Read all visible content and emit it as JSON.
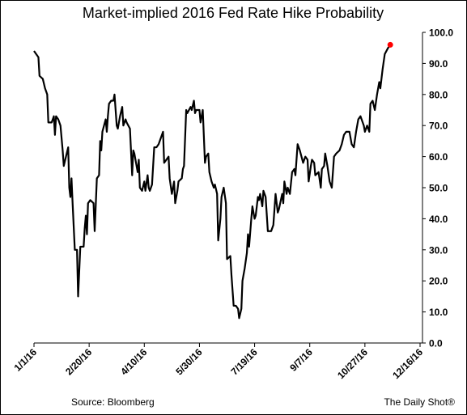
{
  "chart_data": {
    "type": "line",
    "title": "Market-implied 2016 Fed Rate Hike Probability",
    "source": "Source: Bloomberg",
    "credit": "The Daily Shot®",
    "xlim": [
      "2016-01-01",
      "2016-12-16"
    ],
    "xticks": [
      {
        "value": "2016-01-01",
        "label": "1/1/16"
      },
      {
        "value": "2016-02-20",
        "label": "2/20/16"
      },
      {
        "value": "2016-04-10",
        "label": "4/10/16"
      },
      {
        "value": "2016-05-30",
        "label": "5/30/16"
      },
      {
        "value": "2016-07-19",
        "label": "7/19/16"
      },
      {
        "value": "2016-09-07",
        "label": "9/7/16"
      },
      {
        "value": "2016-10-27",
        "label": "10/27/16"
      },
      {
        "value": "2016-12-16",
        "label": "12/16/16"
      }
    ],
    "ylim": [
      0,
      100
    ],
    "yticks": [
      {
        "value": 0,
        "label": "0.0"
      },
      {
        "value": 10,
        "label": "10.0"
      },
      {
        "value": 20,
        "label": "20.0"
      },
      {
        "value": 30,
        "label": "30.0"
      },
      {
        "value": 40,
        "label": "40.0"
      },
      {
        "value": 50,
        "label": "50.0"
      },
      {
        "value": 60,
        "label": "60.0"
      },
      {
        "value": 70,
        "label": "70.0"
      },
      {
        "value": 80,
        "label": "80.0"
      },
      {
        "value": 90,
        "label": "90.0"
      },
      {
        "value": 100,
        "label": "100.0"
      }
    ],
    "y_axis_side": "right",
    "grid": false,
    "highlight_last": true,
    "highlight_color": "#ff0000",
    "series": [
      {
        "color": "#000000",
        "x": [
          "2016-01-01",
          "2016-01-05",
          "2016-01-06",
          "2016-01-09",
          "2016-01-11",
          "2016-01-13",
          "2016-01-14",
          "2016-01-17",
          "2016-01-19",
          "2016-01-20",
          "2016-01-21",
          "2016-01-23",
          "2016-01-25",
          "2016-01-27",
          "2016-01-28",
          "2016-01-30",
          "2016-02-01",
          "2016-02-02",
          "2016-02-03",
          "2016-02-04",
          "2016-02-05",
          "2016-02-07",
          "2016-02-09",
          "2016-02-10",
          "2016-02-12",
          "2016-02-15",
          "2016-02-16",
          "2016-02-17",
          "2016-02-18",
          "2016-02-19",
          "2016-02-21",
          "2016-02-24",
          "2016-02-25",
          "2016-02-27",
          "2016-02-29",
          "2016-03-01",
          "2016-03-02",
          "2016-03-03",
          "2016-03-06",
          "2016-03-07",
          "2016-03-08",
          "2016-03-09",
          "2016-03-11",
          "2016-03-13",
          "2016-03-14",
          "2016-03-16",
          "2016-03-17",
          "2016-03-19",
          "2016-03-21",
          "2016-03-22",
          "2016-03-24",
          "2016-03-25",
          "2016-03-28",
          "2016-03-30",
          "2016-03-31",
          "2016-04-01",
          "2016-04-04",
          "2016-04-05",
          "2016-04-06",
          "2016-04-08",
          "2016-04-10",
          "2016-04-11",
          "2016-04-13",
          "2016-04-14",
          "2016-04-15",
          "2016-04-17",
          "2016-04-19",
          "2016-04-21",
          "2016-04-23",
          "2016-04-24",
          "2016-04-27",
          "2016-04-28",
          "2016-04-30",
          "2016-05-02",
          "2016-05-03",
          "2016-05-05",
          "2016-05-07",
          "2016-05-08",
          "2016-05-10",
          "2016-05-11",
          "2016-05-14",
          "2016-05-15",
          "2016-05-16",
          "2016-05-18",
          "2016-05-19",
          "2016-05-22",
          "2016-05-23",
          "2016-05-25",
          "2016-05-26",
          "2016-05-27",
          "2016-05-30",
          "2016-05-31",
          "2016-06-02",
          "2016-06-04",
          "2016-06-05",
          "2016-06-07",
          "2016-06-08",
          "2016-06-10",
          "2016-06-12",
          "2016-06-13",
          "2016-06-15",
          "2016-06-16",
          "2016-06-18",
          "2016-06-19",
          "2016-06-21",
          "2016-06-23",
          "2016-06-24",
          "2016-06-27",
          "2016-06-28",
          "2016-06-29",
          "2016-06-30",
          "2016-07-02",
          "2016-07-04",
          "2016-07-05",
          "2016-07-07",
          "2016-07-08",
          "2016-07-10",
          "2016-07-12",
          "2016-07-13",
          "2016-07-14",
          "2016-07-16",
          "2016-07-17",
          "2016-07-19",
          "2016-07-20",
          "2016-07-22",
          "2016-07-23",
          "2016-07-24",
          "2016-07-26",
          "2016-07-27",
          "2016-07-29",
          "2016-07-31",
          "2016-08-03",
          "2016-08-05",
          "2016-08-07",
          "2016-08-09",
          "2016-08-10",
          "2016-08-13",
          "2016-08-14",
          "2016-08-15",
          "2016-08-17",
          "2016-08-18",
          "2016-08-20",
          "2016-08-22",
          "2016-08-24",
          "2016-08-25",
          "2016-08-27",
          "2016-08-29",
          "2016-09-01",
          "2016-09-03",
          "2016-09-05",
          "2016-09-06",
          "2016-09-08",
          "2016-09-09",
          "2016-09-11",
          "2016-09-12",
          "2016-09-15",
          "2016-09-17",
          "2016-09-18",
          "2016-09-20",
          "2016-09-21",
          "2016-09-23",
          "2016-09-25",
          "2016-09-27",
          "2016-09-29",
          "2016-10-01",
          "2016-10-04",
          "2016-10-06",
          "2016-10-08",
          "2016-10-10",
          "2016-10-13",
          "2016-10-15",
          "2016-10-17",
          "2016-10-19",
          "2016-10-21",
          "2016-10-23",
          "2016-10-26",
          "2016-10-27",
          "2016-10-29",
          "2016-10-31",
          "2016-11-01",
          "2016-11-03",
          "2016-11-05",
          "2016-11-07",
          "2016-11-09",
          "2016-11-10",
          "2016-11-12",
          "2016-11-14",
          "2016-11-17",
          "2016-11-19"
        ],
        "values": [
          94,
          92,
          86,
          85,
          82,
          80,
          71,
          71,
          73,
          67,
          73,
          72,
          70,
          62,
          57,
          60,
          63,
          50,
          47,
          53,
          45,
          30,
          30,
          15,
          31,
          31,
          37,
          41,
          35,
          45,
          46,
          45,
          36,
          53,
          54,
          65,
          62,
          68,
          72,
          68,
          73,
          77,
          78,
          78,
          80,
          70,
          69,
          73,
          76,
          70,
          72,
          71,
          69,
          54,
          62,
          61,
          55,
          59,
          50,
          49,
          52,
          49,
          54,
          50,
          49,
          51,
          63,
          63,
          64,
          65,
          68,
          58,
          59,
          60,
          53,
          48,
          52,
          45,
          49,
          52,
          53,
          56,
          57,
          75,
          74,
          76,
          75,
          78,
          74,
          75,
          75,
          71,
          75,
          58,
          60,
          61,
          55,
          52,
          50,
          51,
          48,
          33,
          40,
          47,
          50,
          45,
          27,
          28,
          22,
          17,
          12,
          12,
          11,
          8,
          11,
          20,
          24,
          29,
          35,
          31,
          40,
          44,
          40,
          41,
          47,
          46,
          48,
          44,
          49,
          47,
          36,
          36,
          38,
          48,
          42,
          43,
          48,
          45,
          52,
          48,
          50,
          48,
          55,
          56,
          54,
          64,
          62,
          58,
          60,
          59,
          52,
          57,
          59,
          58,
          54,
          55,
          50,
          56,
          57,
          61,
          57,
          52,
          50,
          60,
          61,
          62,
          64,
          67,
          68,
          68,
          64,
          63,
          68,
          72,
          73,
          70,
          68,
          70,
          68,
          77,
          78,
          75,
          80,
          84,
          82,
          88,
          93,
          95,
          96
        ]
      }
    ]
  }
}
